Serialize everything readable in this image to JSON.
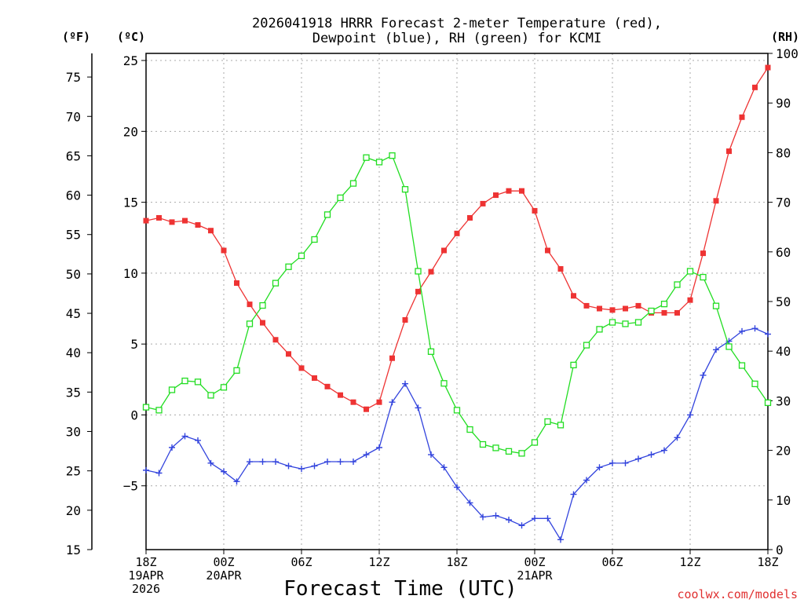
{
  "chart_data": {
    "type": "line",
    "title_line1": "2026041918 HRRR Forecast 2-meter Temperature (red),",
    "title_line2": "Dewpoint (blue), RH (green) for KCMI",
    "xlabel": "Forecast Time (UTC)",
    "unit_labels": {
      "fahrenheit": "(ºF)",
      "celsius": "(ºC)",
      "rh": "(RH)"
    },
    "watermark": "coolwx.com/models",
    "x_hours": [
      0,
      1,
      2,
      3,
      4,
      5,
      6,
      7,
      8,
      9,
      10,
      11,
      12,
      13,
      14,
      15,
      16,
      17,
      18,
      19,
      20,
      21,
      22,
      23,
      24,
      25,
      26,
      27,
      28,
      29,
      30,
      31,
      32,
      33,
      34,
      35,
      36,
      37,
      38,
      39,
      40,
      41,
      42,
      43,
      44,
      45,
      46,
      47,
      48
    ],
    "x_ticks": [
      {
        "hour": 0,
        "lines": [
          "18Z",
          "19APR",
          "2026"
        ]
      },
      {
        "hour": 6,
        "lines": [
          "00Z",
          "20APR"
        ]
      },
      {
        "hour": 12,
        "lines": [
          "06Z"
        ]
      },
      {
        "hour": 18,
        "lines": [
          "12Z"
        ]
      },
      {
        "hour": 24,
        "lines": [
          "18Z"
        ]
      },
      {
        "hour": 30,
        "lines": [
          "00Z",
          "21APR"
        ]
      },
      {
        "hour": 36,
        "lines": [
          "06Z"
        ]
      },
      {
        "hour": 42,
        "lines": [
          "12Z"
        ]
      },
      {
        "hour": 48,
        "lines": [
          "18Z"
        ]
      }
    ],
    "celsius_axis": {
      "range": [
        -9.5,
        25.5
      ],
      "ticks": [
        25,
        20,
        15,
        10,
        5,
        0,
        -5
      ]
    },
    "fahrenheit_axis": {
      "range": [
        15,
        78
      ],
      "ticks": [
        75,
        70,
        65,
        60,
        55,
        50,
        45,
        40,
        35,
        30,
        25,
        20,
        15
      ]
    },
    "rh_axis": {
      "range": [
        0,
        100
      ],
      "ticks": [
        100,
        90,
        80,
        70,
        60,
        50,
        40,
        30,
        20,
        10,
        0
      ]
    },
    "gridlines": true,
    "series": [
      {
        "name": "Temperature (°C)",
        "color": "#ee3333",
        "marker": "filled-square",
        "axis": "celsius",
        "values": [
          13.7,
          13.9,
          13.6,
          13.7,
          13.4,
          13.0,
          11.6,
          9.3,
          7.8,
          6.5,
          5.3,
          4.3,
          3.3,
          2.6,
          2.0,
          1.4,
          0.9,
          0.4,
          0.9,
          4.0,
          6.7,
          8.7,
          10.1,
          11.6,
          12.8,
          13.9,
          14.9,
          15.5,
          15.8,
          15.8,
          14.4,
          11.6,
          10.3,
          8.4,
          7.7,
          7.5,
          7.4,
          7.5,
          7.7,
          7.2,
          7.2,
          7.2,
          8.1,
          11.4,
          15.1,
          18.6,
          21.0,
          23.1,
          24.5
        ]
      },
      {
        "name": "Dewpoint (°C)",
        "color": "#3344dd",
        "marker": "plus",
        "axis": "celsius",
        "values": [
          -3.9,
          -4.1,
          -2.3,
          -1.5,
          -1.8,
          -3.4,
          -4.0,
          -4.7,
          -3.3,
          -3.3,
          -3.3,
          -3.6,
          -3.8,
          -3.6,
          -3.3,
          -3.3,
          -3.3,
          -2.8,
          -2.3,
          0.9,
          2.2,
          0.5,
          -2.8,
          -3.7,
          -5.1,
          -6.2,
          -7.2,
          -7.1,
          -7.4,
          -7.8,
          -7.3,
          -7.3,
          -8.8,
          -5.6,
          -4.6,
          -3.7,
          -3.4,
          -3.4,
          -3.1,
          -2.8,
          -2.5,
          -1.6,
          0.0,
          2.8,
          4.6,
          5.2,
          5.9,
          6.1,
          5.7
        ]
      },
      {
        "name": "RH (%)",
        "color": "#22dd22",
        "marker": "open-square",
        "axis": "rh",
        "values": [
          28.7,
          28.1,
          32.2,
          34.0,
          33.8,
          31.1,
          32.7,
          36.1,
          45.5,
          49.2,
          53.7,
          57.0,
          59.2,
          62.5,
          67.5,
          70.9,
          73.8,
          79.0,
          78.1,
          79.4,
          72.6,
          56.1,
          39.9,
          33.5,
          28.1,
          24.2,
          21.2,
          20.5,
          19.8,
          19.4,
          21.6,
          25.8,
          25.1,
          37.2,
          41.2,
          44.4,
          45.8,
          45.5,
          45.8,
          48.1,
          49.5,
          53.4,
          56.1,
          54.9,
          49.1,
          40.9,
          37.1,
          33.4,
          29.6
        ]
      }
    ]
  }
}
